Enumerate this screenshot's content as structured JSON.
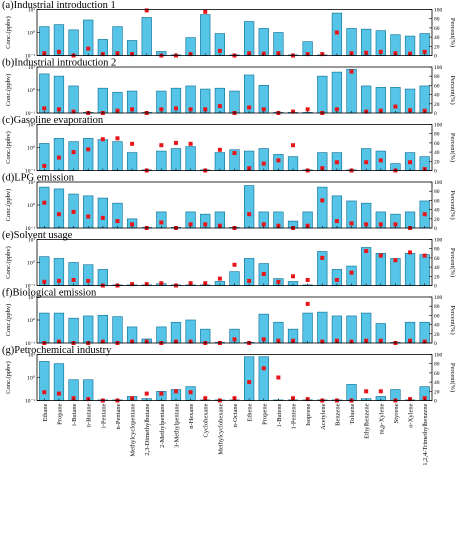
{
  "chart_data": {
    "type": "bar",
    "categories": [
      "Ethane",
      "Propane",
      "i-Butane",
      "n-Butane",
      "i-Pentane",
      "n-Pentane",
      "Methylcyclopentane",
      "2,3-Dimethylbutane",
      "2-Methylpentane",
      "3-Methylpentane",
      "n-Hexane",
      "Cyclohexane",
      "Methylcyclohexane",
      "n-Octane",
      "Ethene",
      "Propene",
      "1-Butene",
      "1-Pentene",
      "Isoprene",
      "Acetylene",
      "Benzene",
      "Toluene",
      "Ethylbenzene",
      "m,p-Xylene",
      "Styrene",
      "o-Xylene",
      "1,2,4-Trimethylbenzene"
    ],
    "y_left": {
      "label": "Conc.(ppbv)",
      "scale": "log",
      "ylim": [
        0.1,
        10
      ],
      "ticks": [
        "10⁻¹",
        "10⁰",
        "10¹"
      ]
    },
    "y_right": {
      "label": "Percent(%)",
      "ylim": [
        0,
        100
      ],
      "ticks": [
        0,
        20,
        40,
        60,
        80,
        100
      ]
    },
    "series_style": {
      "bars": "#55c4e6",
      "bar_edge": "#0a6d93",
      "points": "#e8161b"
    },
    "panels": [
      {
        "title": "(a)Industrial introduction 1",
        "conc": [
          1.8,
          2.2,
          1.3,
          3.5,
          0.5,
          1.8,
          0.45,
          4.5,
          0.15,
          0.1,
          0.6,
          6,
          0.9,
          0.1,
          3,
          1.5,
          1,
          0.1,
          0.4,
          0.1,
          7,
          1.5,
          1.4,
          1.2,
          0.8,
          0.7,
          0.9
        ],
        "percent": [
          5,
          8,
          0,
          15,
          3,
          5,
          3,
          98,
          0,
          0,
          3,
          95,
          10,
          0,
          5,
          4,
          5,
          0,
          3,
          3,
          50,
          5,
          6,
          8,
          5,
          4,
          8
        ]
      },
      {
        "title": "(b)Industrial introduction 2",
        "conc": [
          5,
          4,
          1.5,
          0.1,
          1.2,
          0.8,
          0.9,
          0.1,
          0.9,
          1.2,
          1.5,
          1.1,
          1.2,
          0.9,
          4.5,
          1.6,
          0.1,
          0.1,
          0.1,
          4,
          6,
          8,
          1.5,
          1.3,
          1.3,
          1.1,
          1.5
        ],
        "percent": [
          10,
          8,
          3,
          0,
          0,
          5,
          8,
          0,
          8,
          10,
          8,
          8,
          15,
          0,
          12,
          8,
          0,
          3,
          8,
          0,
          8,
          90,
          3,
          5,
          14,
          6,
          5
        ]
      },
      {
        "title": "(c)Gasoline evaporation",
        "conc": [
          1.5,
          2.5,
          1.8,
          2.5,
          2.2,
          1.8,
          0.6,
          0.1,
          0.7,
          0.9,
          1.1,
          0.1,
          0.6,
          0.8,
          0.7,
          0.9,
          0.5,
          0.4,
          0.1,
          0.6,
          0.6,
          0.1,
          0.9,
          0.7,
          0.2,
          0.6,
          0.4
        ],
        "percent": [
          10,
          28,
          40,
          46,
          68,
          70,
          58,
          0,
          55,
          60,
          58,
          0,
          45,
          38,
          5,
          15,
          22,
          55,
          0,
          5,
          18,
          0,
          18,
          22,
          0,
          18,
          3
        ]
      },
      {
        "title": "(d)LPG emission",
        "conc": [
          6,
          5,
          3,
          2.5,
          2,
          1.2,
          0.25,
          0.1,
          0.5,
          0.1,
          0.5,
          0.4,
          0.5,
          0.1,
          7,
          0.5,
          0.5,
          0.2,
          0.5,
          6,
          2.5,
          1.5,
          1.2,
          0.5,
          0.4,
          0.5,
          1.5
        ],
        "percent": [
          55,
          30,
          35,
          25,
          22,
          15,
          8,
          0,
          12,
          0,
          8,
          8,
          5,
          0,
          30,
          8,
          5,
          0,
          5,
          60,
          15,
          10,
          8,
          8,
          8,
          0,
          30
        ]
      },
      {
        "title": "(e)Solvent usage",
        "conc": [
          1.8,
          1.5,
          1,
          0.8,
          0.5,
          0.1,
          0.08,
          0.07,
          0.12,
          0.1,
          0.06,
          0.08,
          0.15,
          0.4,
          1.5,
          0.9,
          0.2,
          0.15,
          0.1,
          3,
          0.5,
          0.7,
          4.5,
          2.5,
          1.5,
          2.5,
          2.2
        ],
        "percent": [
          8,
          10,
          12,
          10,
          0,
          0,
          3,
          3,
          5,
          0,
          5,
          5,
          15,
          45,
          10,
          25,
          8,
          20,
          12,
          60,
          12,
          28,
          75,
          65,
          55,
          72,
          65
        ]
      },
      {
        "title": "(f)Biological emission",
        "conc": [
          2,
          2,
          1.2,
          1.5,
          1.6,
          1.4,
          0.5,
          0.15,
          0.5,
          0.8,
          1,
          0.4,
          0.1,
          0.4,
          0.1,
          1.8,
          0.8,
          0.4,
          2,
          2.2,
          1.5,
          1.5,
          2,
          0.7,
          0.1,
          0.8,
          0.8
        ],
        "percent": [
          0,
          3,
          0,
          0,
          3,
          0,
          3,
          3,
          0,
          3,
          3,
          0,
          0,
          8,
          0,
          8,
          5,
          5,
          85,
          3,
          5,
          3,
          5,
          5,
          0,
          5,
          3
        ]
      },
      {
        "title": "(g)Petrochemical industry",
        "conc": [
          5,
          4,
          0.8,
          0.8,
          0.1,
          0.1,
          0.15,
          0.12,
          0.25,
          0.3,
          0.4,
          0.1,
          0.05,
          0.05,
          8,
          8,
          0.1,
          0.08,
          0.08,
          0.1,
          0.1,
          0.5,
          0.12,
          0.15,
          0.3,
          0.1,
          0.4
        ],
        "percent": [
          18,
          15,
          5,
          3,
          0,
          0,
          5,
          15,
          15,
          20,
          18,
          5,
          0,
          5,
          40,
          70,
          50,
          5,
          3,
          0,
          0,
          0,
          20,
          20,
          0,
          3,
          5
        ]
      }
    ]
  }
}
